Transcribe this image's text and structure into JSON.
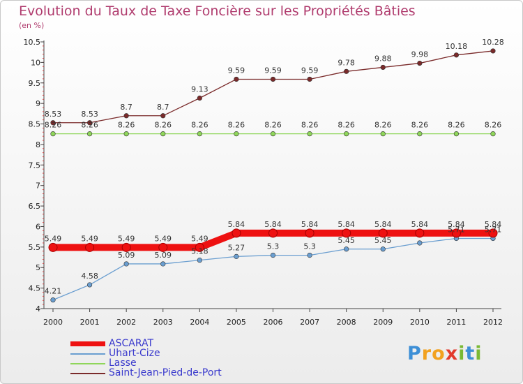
{
  "title": "Evolution du Taux de Taxe Foncière sur les Propriétés Bâties",
  "unit": "(en %)",
  "logo": {
    "letters": [
      "P",
      "r",
      "o",
      "x",
      "i",
      "t",
      "i"
    ],
    "colors": [
      "#3d8fd6",
      "#f2a11f",
      "#f2a11f",
      "#e23a2c",
      "#7ab934",
      "#3d8fd6",
      "#7ab934"
    ]
  },
  "chart_data": {
    "type": "line",
    "title": "Evolution du Taux de Taxe Foncière sur les Propriétés Bâties",
    "ylabel": "(en %)",
    "xlabel": "",
    "x": [
      "2000",
      "2001",
      "2002",
      "2003",
      "2004",
      "2005",
      "2006",
      "2007",
      "2008",
      "2009",
      "2010",
      "2011",
      "2012"
    ],
    "ylim": [
      4,
      10.5
    ],
    "yticks": [
      "4",
      "4.5",
      "5",
      "5.5",
      "6",
      "6.5",
      "7",
      "7.5",
      "8",
      "8.5",
      "9",
      "9.5",
      "10",
      "10.5"
    ],
    "grid": false,
    "legend_position": "bottom-left",
    "series": [
      {
        "name": "Saint-Jean-Pied-de-Port",
        "color": "#7a2a2a",
        "values": [
          8.53,
          8.53,
          8.7,
          8.7,
          9.13,
          9.59,
          9.59,
          9.59,
          9.78,
          9.88,
          9.98,
          10.18,
          10.28
        ],
        "labels": [
          "8.53",
          "8.53",
          "8.7",
          "8.7",
          "9.13",
          "9.59",
          "9.59",
          "9.59",
          "9.78",
          "9.88",
          "9.98",
          "10.18",
          "10.28"
        ]
      },
      {
        "name": "Lasse",
        "color": "#8fd65a",
        "values": [
          8.26,
          8.26,
          8.26,
          8.26,
          8.26,
          8.26,
          8.26,
          8.26,
          8.26,
          8.26,
          8.26,
          8.26,
          8.26
        ],
        "labels": [
          "8.26",
          "8.26",
          "8.26",
          "8.26",
          "8.26",
          "8.26",
          "8.26",
          "8.26",
          "8.26",
          "8.26",
          "8.26",
          "8.26",
          "8.26"
        ]
      },
      {
        "name": "Uhart-Cize",
        "color": "#6a9ed0",
        "values": [
          4.21,
          4.58,
          5.09,
          5.09,
          5.18,
          5.27,
          5.3,
          5.3,
          5.45,
          5.45,
          5.6,
          5.71,
          5.71
        ],
        "labels": [
          "4.21",
          "4.58",
          "5.09",
          "5.09",
          "5.18",
          "5.27",
          "5.3",
          "5.3",
          "5.45",
          "5.45",
          "",
          "5.71",
          "5.71"
        ]
      },
      {
        "name": "ASCARAT",
        "color": "#ee1111",
        "values": [
          5.49,
          5.49,
          5.49,
          5.49,
          5.49,
          5.84,
          5.84,
          5.84,
          5.84,
          5.84,
          5.84,
          5.84,
          5.84
        ],
        "labels": [
          "5.49",
          "5.49",
          "5.49",
          "5.49",
          "5.49",
          "5.84",
          "5.84",
          "5.84",
          "5.84",
          "5.84",
          "5.84",
          "5.84",
          "5.84"
        ]
      }
    ],
    "legend": [
      "ASCARAT",
      "Uhart-Cize",
      "Lasse",
      "Saint-Jean-Pied-de-Port"
    ]
  }
}
